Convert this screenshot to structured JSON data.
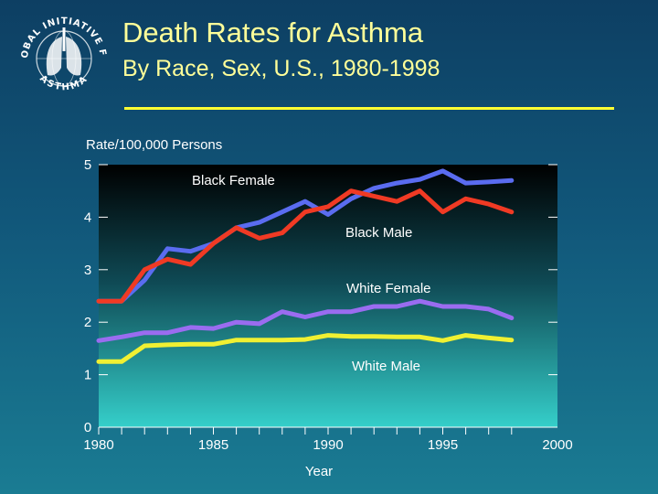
{
  "logo": {
    "text_top": "GLOBAL INITIATIVE FOR",
    "text_bottom": "ASTHMA",
    "icon": "lungs-globe-icon"
  },
  "title": {
    "line1": "Death Rates for Asthma",
    "line2": "By Race, Sex, U.S., 1980-1998"
  },
  "colors": {
    "title": "#ffff99",
    "rule": "#ffff33",
    "black_female": "#5a6cf0",
    "black_male": "#f03a24",
    "white_female": "#9a6cf0",
    "white_male": "#f0f032"
  },
  "chart_data": {
    "type": "line",
    "ylabel": "Rate/100,000 Persons",
    "xlabel": "Year",
    "xlim": [
      1980,
      2000
    ],
    "ylim": [
      0,
      5
    ],
    "x_ticks": [
      1980,
      1985,
      1990,
      1995,
      2000
    ],
    "y_ticks": [
      0,
      1,
      2,
      3,
      4,
      5
    ],
    "x_tick_labels": [
      "1980",
      "1985",
      "1990",
      "1995",
      "2000"
    ],
    "y_tick_labels": [
      "0",
      "1",
      "2",
      "3",
      "4",
      "5"
    ],
    "x": [
      1980,
      1981,
      1982,
      1983,
      1984,
      1985,
      1986,
      1987,
      1988,
      1989,
      1990,
      1991,
      1992,
      1993,
      1994,
      1995,
      1996,
      1997,
      1998
    ],
    "series": [
      {
        "name": "Black Female",
        "color": "#5a6cf0",
        "values": [
          2.4,
          2.4,
          2.8,
          3.4,
          3.35,
          3.5,
          3.8,
          3.9,
          4.1,
          4.3,
          4.05,
          4.35,
          4.55,
          4.65,
          4.72,
          4.88,
          4.65,
          4.67,
          4.7
        ]
      },
      {
        "name": "Black Male",
        "color": "#f03a24",
        "values": [
          2.4,
          2.4,
          3.0,
          3.2,
          3.1,
          3.5,
          3.8,
          3.6,
          3.7,
          4.1,
          4.2,
          4.5,
          4.4,
          4.3,
          4.5,
          4.1,
          4.35,
          4.25,
          4.1
        ]
      },
      {
        "name": "White Female",
        "color": "#9a6cf0",
        "values": [
          1.65,
          1.72,
          1.8,
          1.8,
          1.9,
          1.88,
          2.0,
          1.97,
          2.2,
          2.1,
          2.2,
          2.2,
          2.3,
          2.3,
          2.4,
          2.3,
          2.3,
          2.25,
          2.08
        ]
      },
      {
        "name": "White Male",
        "color": "#f0f032",
        "values": [
          1.25,
          1.25,
          1.55,
          1.57,
          1.58,
          1.58,
          1.66,
          1.66,
          1.66,
          1.67,
          1.75,
          1.73,
          1.73,
          1.72,
          1.72,
          1.65,
          1.75,
          1.7,
          1.66
        ]
      }
    ]
  }
}
